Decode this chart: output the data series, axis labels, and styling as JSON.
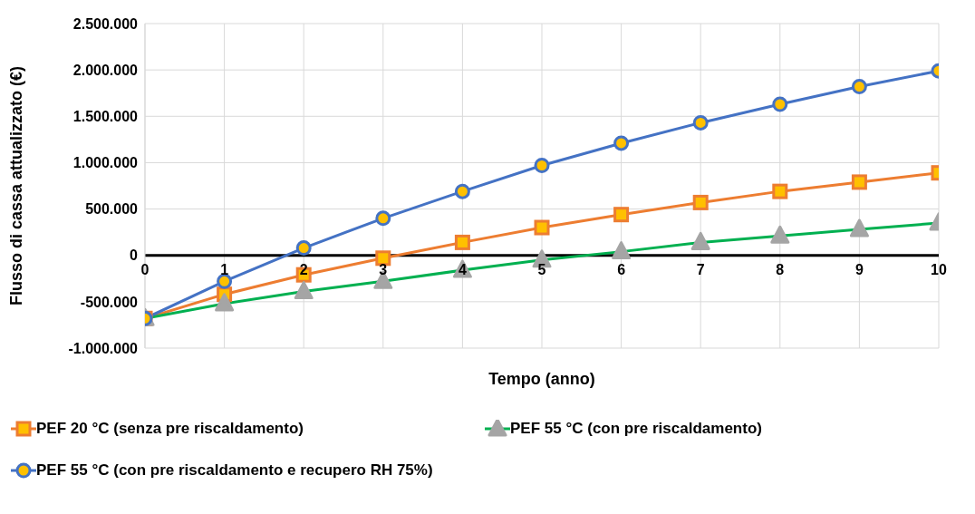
{
  "chart_data": {
    "type": "line",
    "xlabel": "Tempo (anno)",
    "ylabel": "Flusso di cassa attualizzato (€)",
    "x": [
      0,
      1,
      2,
      3,
      4,
      5,
      6,
      7,
      8,
      9,
      10
    ],
    "xlim": [
      0,
      10
    ],
    "xticks": [
      0,
      1,
      2,
      3,
      4,
      5,
      6,
      7,
      8,
      9,
      10
    ],
    "ylim": [
      -1000000,
      2500000
    ],
    "yticks": [
      {
        "value": -1000000,
        "label": "-1.000.000"
      },
      {
        "value": -500000,
        "label": "-500.000"
      },
      {
        "value": 0,
        "label": "0"
      },
      {
        "value": 500000,
        "label": "500.000"
      },
      {
        "value": 1000000,
        "label": "1.000.000"
      },
      {
        "value": 1500000,
        "label": "1.500.000"
      },
      {
        "value": 2000000,
        "label": "2.000.000"
      },
      {
        "value": 2500000,
        "label": "2.500.000"
      }
    ],
    "grid": true,
    "legend": "bottom",
    "series": [
      {
        "name": "PEF 20 °C (senza pre riscaldamento)",
        "color": "#ed7d31",
        "marker": "square",
        "values": [
          -680000,
          -420000,
          -210000,
          -30000,
          140000,
          300000,
          440000,
          570000,
          690000,
          790000,
          890000
        ]
      },
      {
        "name": "PEF 55 °C (con pre riscaldamento)",
        "color": "#00b050",
        "marker": "triangle",
        "values": [
          -680000,
          -520000,
          -390000,
          -280000,
          -160000,
          -50000,
          40000,
          140000,
          210000,
          280000,
          350000
        ]
      },
      {
        "name": "PEF 55 °C (con pre riscaldamento e recupero RH 75%)",
        "color": "#4472c4",
        "marker": "circle",
        "values": [
          -680000,
          -280000,
          80000,
          400000,
          690000,
          970000,
          1210000,
          1430000,
          1630000,
          1820000,
          1990000
        ]
      }
    ]
  }
}
